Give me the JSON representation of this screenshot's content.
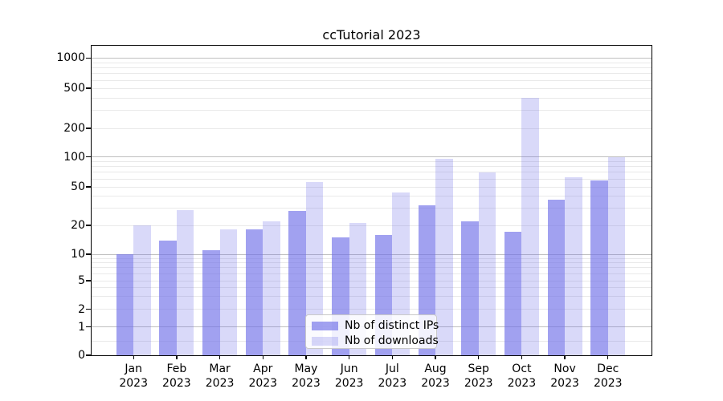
{
  "title": "ccTutorial 2023",
  "chart_data": {
    "type": "bar",
    "title": "ccTutorial 2023",
    "categories": [
      "Jan",
      "Feb",
      "Mar",
      "Apr",
      "May",
      "Jun",
      "Jul",
      "Aug",
      "Sep",
      "Oct",
      "Nov",
      "Dec"
    ],
    "year": "2023",
    "series": [
      {
        "name": "Nb of distinct IPs",
        "values": [
          10,
          14,
          11,
          18,
          28,
          15,
          16,
          32,
          22,
          17,
          37,
          58
        ],
        "color": "rgba(110,110,232,0.65)"
      },
      {
        "name": "Nb of downloads",
        "values": [
          20,
          29,
          18,
          22,
          56,
          21,
          44,
          96,
          70,
          400,
          63,
          100
        ],
        "color": "rgba(110,110,232,0.26)"
      }
    ],
    "y_ticks": [
      0,
      1,
      2,
      5,
      10,
      20,
      50,
      100,
      200,
      500,
      1000
    ],
    "yscale": "symlog",
    "ylim": [
      0,
      1330
    ],
    "grid": true,
    "legend_position": "lower center"
  },
  "colors": {
    "bar_base": "#6e6ee8",
    "major_grid": "#bfbfbf",
    "minor_grid": "#e9e9e9",
    "spine": "#000000",
    "background": "#ffffff"
  }
}
